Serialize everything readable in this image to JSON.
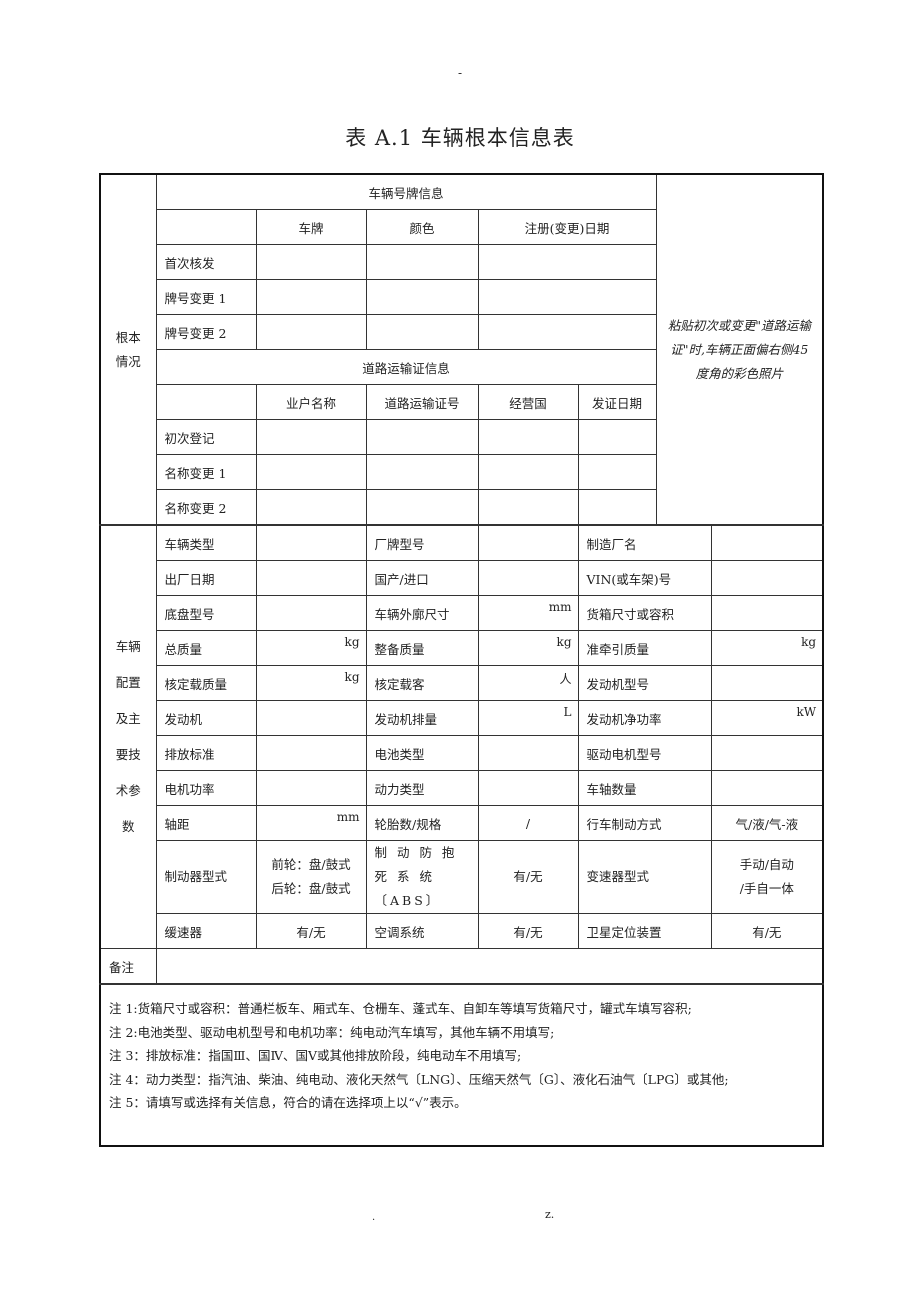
{
  "header_mark": "-",
  "title": "表 A.1  车辆根本信息表",
  "basic": {
    "section_label": "根本\n情况",
    "plate_header": "车辆号牌信息",
    "plate_cols": [
      "",
      "车牌",
      "颜色",
      "注册(变更)日期"
    ],
    "plate_rows": [
      "首次核发",
      "牌号变更 1",
      "牌号变更 2"
    ],
    "road_header": "道路运输证信息",
    "road_cols": [
      "",
      "业户名称",
      "道路运输证号",
      "经营国",
      "发证日期"
    ],
    "road_rows": [
      "初次登记",
      "名称变更 1",
      "名称变更 2"
    ],
    "photo_note": "粘贴初次或变更\"道路运输证\"时,车辆正面偏右侧45度角的彩色照片"
  },
  "config": {
    "section_label": "车辆配置及主要技术参数",
    "rows": [
      [
        {
          "label": "车辆类型",
          "value": "",
          "unit": ""
        },
        {
          "label": "厂牌型号",
          "value": "",
          "unit": ""
        },
        {
          "label": "制造厂名",
          "value": "",
          "unit": ""
        }
      ],
      [
        {
          "label": "出厂日期",
          "value": "",
          "unit": ""
        },
        {
          "label": "国产/进口",
          "value": "",
          "unit": ""
        },
        {
          "label": "VIN(或车架)号",
          "value": "",
          "unit": ""
        }
      ],
      [
        {
          "label": "底盘型号",
          "value": "",
          "unit": ""
        },
        {
          "label": "车辆外廓尺寸",
          "value": "",
          "unit": "mm"
        },
        {
          "label": "货箱尺寸或容积",
          "value": "",
          "unit": ""
        }
      ],
      [
        {
          "label": "总质量",
          "value": "",
          "unit": "kg"
        },
        {
          "label": "整备质量",
          "value": "",
          "unit": "kg"
        },
        {
          "label": "准牵引质量",
          "value": "",
          "unit": "kg"
        }
      ],
      [
        {
          "label": "核定载质量",
          "value": "",
          "unit": "kg"
        },
        {
          "label": "核定载客",
          "value": "",
          "unit": "人"
        },
        {
          "label": "发动机型号",
          "value": "",
          "unit": ""
        }
      ],
      [
        {
          "label": "发动机",
          "value": "",
          "unit": ""
        },
        {
          "label": "发动机排量",
          "value": "",
          "unit": "L"
        },
        {
          "label": "发动机净功率",
          "value": "",
          "unit": "kW"
        }
      ],
      [
        {
          "label": "排放标准",
          "value": "",
          "unit": ""
        },
        {
          "label": "电池类型",
          "value": "",
          "unit": ""
        },
        {
          "label": "驱动电机型号",
          "value": "",
          "unit": ""
        }
      ],
      [
        {
          "label": "电机功率",
          "value": "",
          "unit": ""
        },
        {
          "label": "动力类型",
          "value": "",
          "unit": ""
        },
        {
          "label": "车轴数量",
          "value": "",
          "unit": ""
        }
      ],
      [
        {
          "label": "轴距",
          "value": "",
          "unit": "mm"
        },
        {
          "label": "轮胎数/规格",
          "value": "/",
          "unit": ""
        },
        {
          "label": "行车制动方式",
          "value": "气/液/气-液",
          "unit": ""
        }
      ],
      [
        {
          "label": "制动器型式",
          "value": "前轮：盘/鼓式\n后轮：盘/鼓式",
          "unit": ""
        },
        {
          "label": "制 动 防 抱 死 系 统〔ABS〕",
          "value": "有/无",
          "unit": ""
        },
        {
          "label": "变速器型式",
          "value": "手动/自动\n/手自一体",
          "unit": ""
        }
      ],
      [
        {
          "label": "缓速器",
          "value": "有/无",
          "unit": ""
        },
        {
          "label": "空调系统",
          "value": "有/无",
          "unit": ""
        },
        {
          "label": "卫星定位装置",
          "value": "有/无",
          "unit": ""
        }
      ]
    ]
  },
  "remarks": {
    "label": "备注",
    "value": ""
  },
  "notes": [
    "注 1:货箱尺寸或容积：普通栏板车、厢式车、仓栅车、蓬式车、自卸车等填写货箱尺寸，罐式车填写容积;",
    "注 2:电池类型、驱动电机型号和电机功率：纯电动汽车填写，其他车辆不用填写;",
    "注 3：排放标准：指国Ⅲ、国Ⅳ、国Ⅴ或其他排放阶段，纯电动车不用填写;",
    "注 4：动力类型：指汽油、柴油、纯电动、液化天然气〔LNG〕、压缩天然气〔G〕、液化石油气〔LPG〕或其他;",
    "注 5：请填写或选择有关信息，符合的请在选择项上以“√”表示。"
  ],
  "footer": {
    "left": ".",
    "right": "z."
  }
}
